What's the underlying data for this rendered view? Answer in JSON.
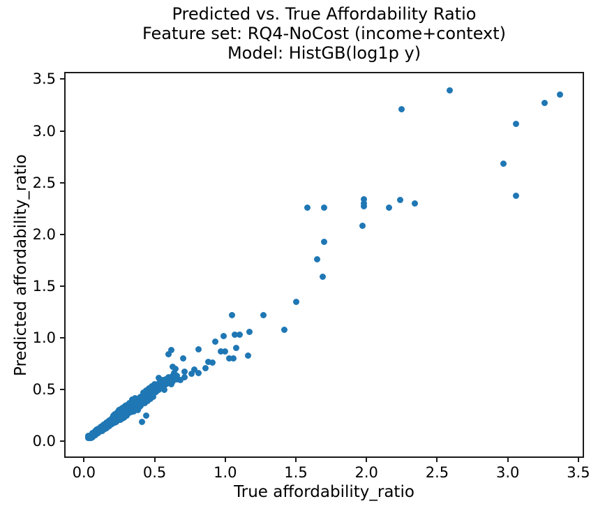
{
  "figure": {
    "background": "#ffffff"
  },
  "chart_data": {
    "type": "scatter",
    "title_lines": [
      "Predicted vs. True Affordability Ratio",
      "Feature set: RQ4-NoCost (income+context)",
      "Model: HistGB(log1p y)"
    ],
    "xlabel": "True affordability_ratio",
    "ylabel": "Predicted affordability_ratio",
    "xticks": [
      "0.0",
      "0.5",
      "1.0",
      "1.5",
      "2.0",
      "2.5",
      "3.0",
      "3.5"
    ],
    "yticks": [
      "0.0",
      "0.5",
      "1.0",
      "1.5",
      "2.0",
      "2.5",
      "3.0",
      "3.5"
    ],
    "xlim": [
      -0.14,
      3.54
    ],
    "ylim": [
      -0.16,
      3.57
    ],
    "grid": false,
    "legend": null,
    "marker_color": "#1f77b4",
    "marker_diameter_px": 9,
    "points": [
      [
        0.03,
        0.03
      ],
      [
        0.03,
        0.04
      ],
      [
        0.04,
        0.03
      ],
      [
        0.04,
        0.05
      ],
      [
        0.05,
        0.04
      ],
      [
        0.05,
        0.05
      ],
      [
        0.05,
        0.06
      ],
      [
        0.06,
        0.05
      ],
      [
        0.06,
        0.06
      ],
      [
        0.06,
        0.07
      ],
      [
        0.07,
        0.06
      ],
      [
        0.07,
        0.07
      ],
      [
        0.07,
        0.08
      ],
      [
        0.08,
        0.07
      ],
      [
        0.08,
        0.08
      ],
      [
        0.08,
        0.09
      ],
      [
        0.09,
        0.08
      ],
      [
        0.09,
        0.09
      ],
      [
        0.09,
        0.1
      ],
      [
        0.1,
        0.09
      ],
      [
        0.1,
        0.1
      ],
      [
        0.1,
        0.11
      ],
      [
        0.04,
        0.04
      ],
      [
        0.05,
        0.03
      ],
      [
        0.06,
        0.04
      ],
      [
        0.07,
        0.05
      ],
      [
        0.08,
        0.06
      ],
      [
        0.09,
        0.07
      ],
      [
        0.1,
        0.08
      ],
      [
        0.03,
        0.05
      ],
      [
        0.06,
        0.08
      ],
      [
        0.08,
        0.1
      ],
      [
        0.1,
        0.12
      ],
      [
        0.09,
        0.11
      ],
      [
        0.11,
        0.1
      ],
      [
        0.11,
        0.11
      ],
      [
        0.11,
        0.12
      ],
      [
        0.12,
        0.1
      ],
      [
        0.12,
        0.12
      ],
      [
        0.12,
        0.13
      ],
      [
        0.13,
        0.11
      ],
      [
        0.13,
        0.12
      ],
      [
        0.13,
        0.14
      ],
      [
        0.14,
        0.12
      ],
      [
        0.14,
        0.13
      ],
      [
        0.14,
        0.15
      ],
      [
        0.15,
        0.13
      ],
      [
        0.15,
        0.14
      ],
      [
        0.15,
        0.16
      ],
      [
        0.16,
        0.14
      ],
      [
        0.16,
        0.15
      ],
      [
        0.16,
        0.17
      ],
      [
        0.17,
        0.15
      ],
      [
        0.17,
        0.16
      ],
      [
        0.17,
        0.18
      ],
      [
        0.18,
        0.16
      ],
      [
        0.18,
        0.17
      ],
      [
        0.18,
        0.19
      ],
      [
        0.19,
        0.17
      ],
      [
        0.19,
        0.18
      ],
      [
        0.19,
        0.2
      ],
      [
        0.2,
        0.18
      ],
      [
        0.2,
        0.19
      ],
      [
        0.2,
        0.21
      ],
      [
        0.11,
        0.09
      ],
      [
        0.12,
        0.14
      ],
      [
        0.13,
        0.1
      ],
      [
        0.14,
        0.16
      ],
      [
        0.15,
        0.12
      ],
      [
        0.16,
        0.18
      ],
      [
        0.17,
        0.14
      ],
      [
        0.18,
        0.2
      ],
      [
        0.19,
        0.16
      ],
      [
        0.2,
        0.22
      ],
      [
        0.12,
        0.11
      ],
      [
        0.13,
        0.15
      ],
      [
        0.14,
        0.11
      ],
      [
        0.15,
        0.17
      ],
      [
        0.16,
        0.13
      ],
      [
        0.17,
        0.19
      ],
      [
        0.18,
        0.15
      ],
      [
        0.19,
        0.21
      ],
      [
        0.2,
        0.17
      ],
      [
        0.11,
        0.13
      ],
      [
        0.13,
        0.13
      ],
      [
        0.15,
        0.15
      ],
      [
        0.17,
        0.17
      ],
      [
        0.19,
        0.19
      ],
      [
        0.21,
        0.19
      ],
      [
        0.21,
        0.21
      ],
      [
        0.21,
        0.23
      ],
      [
        0.22,
        0.2
      ],
      [
        0.22,
        0.22
      ],
      [
        0.22,
        0.24
      ],
      [
        0.23,
        0.21
      ],
      [
        0.23,
        0.23
      ],
      [
        0.23,
        0.25
      ],
      [
        0.24,
        0.22
      ],
      [
        0.24,
        0.24
      ],
      [
        0.24,
        0.26
      ],
      [
        0.25,
        0.22
      ],
      [
        0.25,
        0.24
      ],
      [
        0.25,
        0.27
      ],
      [
        0.26,
        0.23
      ],
      [
        0.26,
        0.25
      ],
      [
        0.26,
        0.28
      ],
      [
        0.27,
        0.24
      ],
      [
        0.27,
        0.26
      ],
      [
        0.27,
        0.29
      ],
      [
        0.28,
        0.25
      ],
      [
        0.28,
        0.27
      ],
      [
        0.28,
        0.3
      ],
      [
        0.29,
        0.26
      ],
      [
        0.29,
        0.28
      ],
      [
        0.29,
        0.31
      ],
      [
        0.3,
        0.27
      ],
      [
        0.3,
        0.29
      ],
      [
        0.3,
        0.32
      ],
      [
        0.21,
        0.25
      ],
      [
        0.23,
        0.19
      ],
      [
        0.25,
        0.3
      ],
      [
        0.27,
        0.22
      ],
      [
        0.29,
        0.34
      ],
      [
        0.22,
        0.26
      ],
      [
        0.24,
        0.2
      ],
      [
        0.26,
        0.31
      ],
      [
        0.28,
        0.23
      ],
      [
        0.3,
        0.35
      ],
      [
        0.23,
        0.27
      ],
      [
        0.25,
        0.21
      ],
      [
        0.27,
        0.32
      ],
      [
        0.29,
        0.24
      ],
      [
        0.22,
        0.18
      ],
      [
        0.24,
        0.28
      ],
      [
        0.26,
        0.21
      ],
      [
        0.28,
        0.33
      ],
      [
        0.3,
        0.25
      ],
      [
        0.26,
        0.26
      ],
      [
        0.31,
        0.29
      ],
      [
        0.31,
        0.32
      ],
      [
        0.31,
        0.35
      ],
      [
        0.32,
        0.29
      ],
      [
        0.32,
        0.31
      ],
      [
        0.32,
        0.34
      ],
      [
        0.33,
        0.3
      ],
      [
        0.33,
        0.33
      ],
      [
        0.33,
        0.36
      ],
      [
        0.34,
        0.31
      ],
      [
        0.34,
        0.34
      ],
      [
        0.34,
        0.37
      ],
      [
        0.35,
        0.31
      ],
      [
        0.35,
        0.34
      ],
      [
        0.35,
        0.38
      ],
      [
        0.36,
        0.32
      ],
      [
        0.36,
        0.35
      ],
      [
        0.36,
        0.39
      ],
      [
        0.37,
        0.33
      ],
      [
        0.37,
        0.36
      ],
      [
        0.37,
        0.4
      ],
      [
        0.38,
        0.34
      ],
      [
        0.38,
        0.37
      ],
      [
        0.38,
        0.41
      ],
      [
        0.39,
        0.35
      ],
      [
        0.39,
        0.38
      ],
      [
        0.39,
        0.42
      ],
      [
        0.4,
        0.36
      ],
      [
        0.4,
        0.39
      ],
      [
        0.4,
        0.43
      ],
      [
        0.31,
        0.27
      ],
      [
        0.33,
        0.28
      ],
      [
        0.35,
        0.29
      ],
      [
        0.37,
        0.31
      ],
      [
        0.39,
        0.33
      ],
      [
        0.32,
        0.37
      ],
      [
        0.34,
        0.4
      ],
      [
        0.36,
        0.42
      ],
      [
        0.38,
        0.3
      ],
      [
        0.4,
        0.34
      ],
      [
        0.41,
        0.38
      ],
      [
        0.41,
        0.42
      ],
      [
        0.42,
        0.39
      ],
      [
        0.42,
        0.44
      ],
      [
        0.43,
        0.4
      ],
      [
        0.43,
        0.45
      ],
      [
        0.44,
        0.41
      ],
      [
        0.44,
        0.46
      ],
      [
        0.45,
        0.42
      ],
      [
        0.45,
        0.47
      ],
      [
        0.46,
        0.43
      ],
      [
        0.46,
        0.48
      ],
      [
        0.47,
        0.44
      ],
      [
        0.47,
        0.49
      ],
      [
        0.48,
        0.45
      ],
      [
        0.48,
        0.5
      ],
      [
        0.49,
        0.46
      ],
      [
        0.49,
        0.51
      ],
      [
        0.5,
        0.47
      ],
      [
        0.5,
        0.52
      ],
      [
        0.41,
        0.36
      ],
      [
        0.43,
        0.37
      ],
      [
        0.45,
        0.39
      ],
      [
        0.47,
        0.41
      ],
      [
        0.49,
        0.43
      ],
      [
        0.42,
        0.47
      ],
      [
        0.44,
        0.49
      ],
      [
        0.46,
        0.51
      ],
      [
        0.48,
        0.53
      ],
      [
        0.5,
        0.55
      ],
      [
        0.51,
        0.48
      ],
      [
        0.51,
        0.53
      ],
      [
        0.52,
        0.49
      ],
      [
        0.52,
        0.54
      ],
      [
        0.53,
        0.5
      ],
      [
        0.53,
        0.56
      ],
      [
        0.54,
        0.51
      ],
      [
        0.54,
        0.57
      ],
      [
        0.55,
        0.52
      ],
      [
        0.55,
        0.58
      ],
      [
        0.56,
        0.53
      ],
      [
        0.56,
        0.59
      ],
      [
        0.57,
        0.54
      ],
      [
        0.58,
        0.55
      ],
      [
        0.58,
        0.6
      ],
      [
        0.59,
        0.56
      ],
      [
        0.6,
        0.57
      ],
      [
        0.6,
        0.62
      ],
      [
        0.53,
        0.61
      ],
      [
        0.57,
        0.5
      ],
      [
        0.61,
        0.58
      ],
      [
        0.62,
        0.6
      ],
      [
        0.63,
        0.58
      ],
      [
        0.63,
        0.63
      ],
      [
        0.64,
        0.6
      ],
      [
        0.65,
        0.62
      ],
      [
        0.66,
        0.63
      ],
      [
        0.62,
        0.55
      ],
      [
        0.64,
        0.66
      ],
      [
        0.66,
        0.6
      ],
      [
        0.6,
        0.84
      ],
      [
        0.62,
        0.88
      ],
      [
        0.63,
        0.72
      ],
      [
        0.65,
        0.7
      ],
      [
        0.7,
        0.8
      ],
      [
        0.71,
        0.67
      ],
      [
        0.76,
        0.65
      ],
      [
        0.78,
        0.69
      ],
      [
        0.81,
        0.66
      ],
      [
        0.68,
        0.59
      ],
      [
        0.71,
        0.62
      ],
      [
        0.41,
        0.19
      ],
      [
        0.44,
        0.25
      ],
      [
        0.81,
        0.89
      ],
      [
        0.86,
        0.71
      ],
      [
        0.88,
        0.77
      ],
      [
        0.91,
        0.76
      ],
      [
        0.93,
        0.96
      ],
      [
        0.97,
        0.87
      ],
      [
        1.0,
        0.87
      ],
      [
        1.08,
        0.9
      ],
      [
        0.99,
        1.02
      ],
      [
        1.07,
        1.03
      ],
      [
        1.1,
        1.03
      ],
      [
        1.17,
        1.06
      ],
      [
        1.03,
        0.8
      ],
      [
        1.06,
        0.8
      ],
      [
        1.16,
        0.83
      ],
      [
        1.05,
        1.22
      ],
      [
        1.27,
        1.22
      ],
      [
        1.42,
        1.08
      ],
      [
        1.5,
        1.35
      ],
      [
        1.58,
        2.26
      ],
      [
        1.7,
        2.26
      ],
      [
        1.65,
        1.76
      ],
      [
        1.69,
        1.59
      ],
      [
        1.7,
        1.93
      ],
      [
        1.97,
        2.08
      ],
      [
        1.98,
        2.27
      ],
      [
        1.98,
        2.3
      ],
      [
        1.98,
        2.34
      ],
      [
        2.16,
        2.26
      ],
      [
        2.24,
        2.33
      ],
      [
        2.34,
        2.3
      ],
      [
        2.25,
        3.21
      ],
      [
        2.59,
        3.39
      ],
      [
        2.97,
        2.68
      ],
      [
        3.06,
        2.37
      ],
      [
        3.06,
        3.07
      ],
      [
        3.26,
        3.27
      ],
      [
        3.37,
        3.35
      ]
    ]
  }
}
